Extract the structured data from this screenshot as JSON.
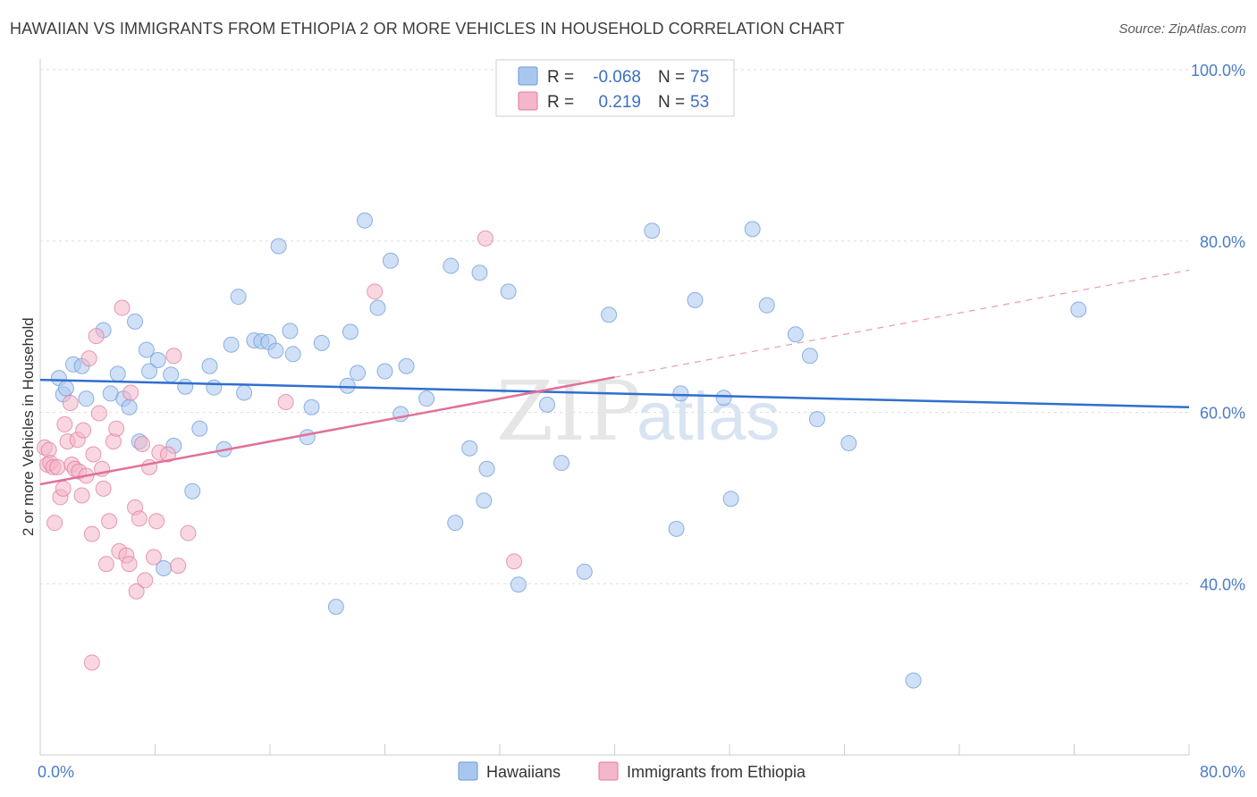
{
  "title": "HAWAIIAN VS IMMIGRANTS FROM ETHIOPIA 2 OR MORE VEHICLES IN HOUSEHOLD CORRELATION CHART",
  "source": "Source: ZipAtlas.com",
  "watermark": {
    "zip": "ZIP",
    "atlas": "atlas"
  },
  "legend": {
    "r_label": "R =",
    "n_label": "N =",
    "rows": [
      {
        "r": "-0.068",
        "n": "75",
        "color": "#a9c7ee"
      },
      {
        "r": "0.219",
        "n": "53",
        "color": "#f4b6c9"
      }
    ]
  },
  "chart_data": {
    "type": "scatter",
    "title": "HAWAIIAN VS IMMIGRANTS FROM ETHIOPIA 2 OR MORE VEHICLES IN HOUSEHOLD CORRELATION CHART",
    "xlabel": "",
    "ylabel": "2 or more Vehicles in Household",
    "xlim": [
      0,
      80
    ],
    "ylim": [
      20,
      100
    ],
    "x_tick_labels": [
      "0.0%",
      "80.0%"
    ],
    "y_ticks": [
      40,
      60,
      80,
      100
    ],
    "y_tick_labels": [
      "40.0%",
      "60.0%",
      "80.0%",
      "100.0%"
    ],
    "grid": true,
    "legend_position": "top-center",
    "series": [
      {
        "name": "Hawaiians",
        "color": "#6b9bd8",
        "fill": "#a9c7ee",
        "r": -0.068,
        "n": 75,
        "trend": {
          "x": [
            0,
            80
          ],
          "y": [
            63.8,
            60.6
          ],
          "dashed_from": null
        },
        "points": [
          [
            1.6,
            62.1
          ],
          [
            1.3,
            64.0
          ],
          [
            1.8,
            62.8
          ],
          [
            2.3,
            65.6
          ],
          [
            2.9,
            65.4
          ],
          [
            3.2,
            61.6
          ],
          [
            4.4,
            69.6
          ],
          [
            4.9,
            62.2
          ],
          [
            5.4,
            64.5
          ],
          [
            5.8,
            61.6
          ],
          [
            6.2,
            60.6
          ],
          [
            6.6,
            70.6
          ],
          [
            6.9,
            56.6
          ],
          [
            7.4,
            67.3
          ],
          [
            7.6,
            64.8
          ],
          [
            8.2,
            66.1
          ],
          [
            9.1,
            64.4
          ],
          [
            9.3,
            56.1
          ],
          [
            10.1,
            63.0
          ],
          [
            10.6,
            50.8
          ],
          [
            11.1,
            58.1
          ],
          [
            11.8,
            65.4
          ],
          [
            12.1,
            62.9
          ],
          [
            12.8,
            55.7
          ],
          [
            13.3,
            67.9
          ],
          [
            13.8,
            73.5
          ],
          [
            14.2,
            62.3
          ],
          [
            14.9,
            68.4
          ],
          [
            15.4,
            68.3
          ],
          [
            15.9,
            68.2
          ],
          [
            16.4,
            67.2
          ],
          [
            16.6,
            79.4
          ],
          [
            17.4,
            69.5
          ],
          [
            17.6,
            66.8
          ],
          [
            18.6,
            57.1
          ],
          [
            18.9,
            60.6
          ],
          [
            19.6,
            68.1
          ],
          [
            20.6,
            37.3
          ],
          [
            21.4,
            63.1
          ],
          [
            21.6,
            69.4
          ],
          [
            22.1,
            64.6
          ],
          [
            22.6,
            82.4
          ],
          [
            23.5,
            72.2
          ],
          [
            24.0,
            64.8
          ],
          [
            24.4,
            77.7
          ],
          [
            25.1,
            59.8
          ],
          [
            25.5,
            65.4
          ],
          [
            26.9,
            61.6
          ],
          [
            28.6,
            77.1
          ],
          [
            28.9,
            47.1
          ],
          [
            29.9,
            55.8
          ],
          [
            30.6,
            76.3
          ],
          [
            30.9,
            49.7
          ],
          [
            31.1,
            53.4
          ],
          [
            32.6,
            74.1
          ],
          [
            33.3,
            39.9
          ],
          [
            35.3,
            60.9
          ],
          [
            36.3,
            54.1
          ],
          [
            37.9,
            41.4
          ],
          [
            39.6,
            71.4
          ],
          [
            42.6,
            81.2
          ],
          [
            44.3,
            46.4
          ],
          [
            44.6,
            62.2
          ],
          [
            45.6,
            73.1
          ],
          [
            47.6,
            61.7
          ],
          [
            48.1,
            49.9
          ],
          [
            49.6,
            81.4
          ],
          [
            50.6,
            72.5
          ],
          [
            52.6,
            69.1
          ],
          [
            53.6,
            66.6
          ],
          [
            54.1,
            59.2
          ],
          [
            56.3,
            56.4
          ],
          [
            60.8,
            28.7
          ],
          [
            72.3,
            72.0
          ],
          [
            8.6,
            41.8
          ]
        ]
      },
      {
        "name": "Immigrants from Ethiopia",
        "color": "#e07a9c",
        "fill": "#f4b6c9",
        "r": 0.219,
        "n": 53,
        "trend": {
          "x": [
            0,
            80
          ],
          "y": [
            51.6,
            76.6
          ],
          "solid_until_x": 40
        },
        "points": [
          [
            0.3,
            55.9
          ],
          [
            0.5,
            53.9
          ],
          [
            0.6,
            55.6
          ],
          [
            0.7,
            54.1
          ],
          [
            0.9,
            53.6
          ],
          [
            1.0,
            47.1
          ],
          [
            1.2,
            53.6
          ],
          [
            1.4,
            50.1
          ],
          [
            1.6,
            51.1
          ],
          [
            1.7,
            58.6
          ],
          [
            1.9,
            56.6
          ],
          [
            2.1,
            61.1
          ],
          [
            2.2,
            53.9
          ],
          [
            2.4,
            53.4
          ],
          [
            2.6,
            56.8
          ],
          [
            2.7,
            53.1
          ],
          [
            2.9,
            50.3
          ],
          [
            3.0,
            57.9
          ],
          [
            3.2,
            52.6
          ],
          [
            3.4,
            66.3
          ],
          [
            3.6,
            45.8
          ],
          [
            3.7,
            55.1
          ],
          [
            3.9,
            68.9
          ],
          [
            4.1,
            59.9
          ],
          [
            4.3,
            53.4
          ],
          [
            4.4,
            51.1
          ],
          [
            4.6,
            42.3
          ],
          [
            4.8,
            47.3
          ],
          [
            5.1,
            56.6
          ],
          [
            5.3,
            58.1
          ],
          [
            5.5,
            43.8
          ],
          [
            5.7,
            72.2
          ],
          [
            6.0,
            43.3
          ],
          [
            6.2,
            42.3
          ],
          [
            6.3,
            62.3
          ],
          [
            6.6,
            48.9
          ],
          [
            6.7,
            39.1
          ],
          [
            6.9,
            47.6
          ],
          [
            7.1,
            56.3
          ],
          [
            7.3,
            40.4
          ],
          [
            7.6,
            53.6
          ],
          [
            7.9,
            43.1
          ],
          [
            8.1,
            47.3
          ],
          [
            8.3,
            55.3
          ],
          [
            8.9,
            55.1
          ],
          [
            9.3,
            66.6
          ],
          [
            9.6,
            42.1
          ],
          [
            10.3,
            45.9
          ],
          [
            17.1,
            61.2
          ],
          [
            23.3,
            74.1
          ],
          [
            31.0,
            80.3
          ],
          [
            33.0,
            42.6
          ],
          [
            3.6,
            30.8
          ]
        ]
      }
    ]
  }
}
